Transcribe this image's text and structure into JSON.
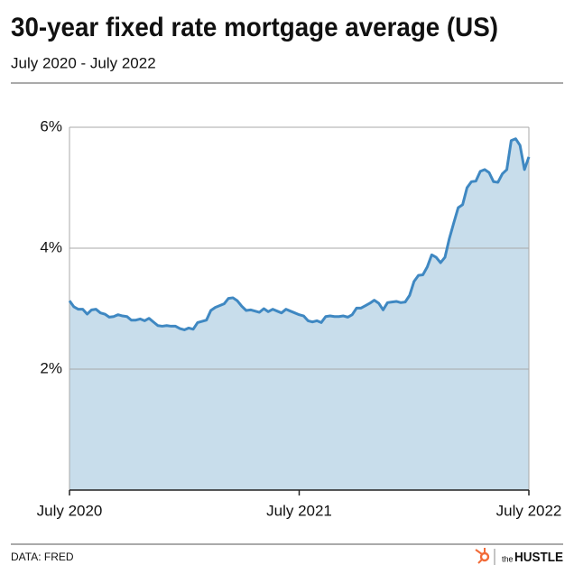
{
  "chart_data": {
    "type": "line",
    "title": "30-year fixed rate mortgage average (US)",
    "subtitle": "July 2020 - July 2022",
    "source": "DATA: FRED",
    "color": "#3f88c2",
    "fill": "#c8ddeb",
    "values": [
      3.13,
      3.03,
      2.99,
      2.99,
      2.91,
      2.98,
      2.99,
      2.93,
      2.91,
      2.86,
      2.87,
      2.9,
      2.88,
      2.87,
      2.81,
      2.81,
      2.83,
      2.8,
      2.84,
      2.78,
      2.72,
      2.71,
      2.72,
      2.71,
      2.71,
      2.67,
      2.65,
      2.68,
      2.66,
      2.77,
      2.79,
      2.81,
      2.97,
      3.02,
      3.05,
      3.08,
      3.17,
      3.18,
      3.13,
      3.04,
      2.97,
      2.98,
      2.96,
      2.94,
      3.0,
      2.95,
      2.99,
      2.96,
      2.93,
      2.99,
      2.96,
      2.93,
      2.9,
      2.88,
      2.8,
      2.78,
      2.8,
      2.77,
      2.87,
      2.88,
      2.87,
      2.87,
      2.88,
      2.86,
      2.9,
      3.01,
      3.01,
      3.05,
      3.09,
      3.14,
      3.09,
      2.98,
      3.1,
      3.11,
      3.12,
      3.1,
      3.11,
      3.22,
      3.45,
      3.55,
      3.56,
      3.69,
      3.89,
      3.85,
      3.76,
      3.85,
      4.16,
      4.42,
      4.67,
      4.72,
      5.0,
      5.1,
      5.11,
      5.27,
      5.3,
      5.25,
      5.1,
      5.09,
      5.23,
      5.3,
      5.78,
      5.81,
      5.7,
      5.3,
      5.51
    ],
    "xlim": [
      0,
      104
    ],
    "xticks": [
      {
        "value": 0,
        "label": "July 2020"
      },
      {
        "value": 52,
        "label": "July 2021"
      },
      {
        "value": 104,
        "label": "July 2022"
      }
    ],
    "ylim": [
      0,
      6
    ],
    "yticks": [
      {
        "value": 2,
        "label": "2%"
      },
      {
        "value": 4,
        "label": "4%"
      },
      {
        "value": 6,
        "label": "6%"
      }
    ],
    "grid": true
  },
  "logo": {
    "prefix": "the",
    "name": "HUSTLE"
  }
}
